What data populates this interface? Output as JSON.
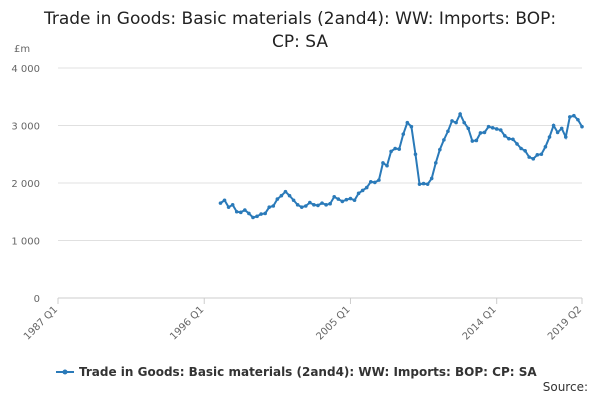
{
  "chart_data": {
    "type": "line",
    "title": "Trade in Goods: Basic materials (2and4): WW: Imports: BOP: CP: SA",
    "y_unit": "£m",
    "source": "Source:",
    "xlim": [
      "1987 Q1",
      "2019 Q2"
    ],
    "xticks": [
      "1987 Q1",
      "1996 Q1",
      "2005 Q1",
      "2014 Q1",
      "2019 Q2"
    ],
    "ylim": [
      0,
      4000
    ],
    "yticks": [
      0,
      {
        "value": 1000,
        "label": "1 000"
      },
      {
        "value": 2000,
        "label": "2 000"
      },
      {
        "value": 3000,
        "label": "3 000"
      },
      {
        "value": 4000,
        "label": "4 000"
      }
    ],
    "grid": true,
    "legend": "bottom",
    "x": [
      "1997 Q1",
      "1997 Q2",
      "1997 Q3",
      "1997 Q4",
      "1998 Q1",
      "1998 Q2",
      "1998 Q3",
      "1998 Q4",
      "1999 Q1",
      "1999 Q2",
      "1999 Q3",
      "1999 Q4",
      "2000 Q1",
      "2000 Q2",
      "2000 Q3",
      "2000 Q4",
      "2001 Q1",
      "2001 Q2",
      "2001 Q3",
      "2001 Q4",
      "2002 Q1",
      "2002 Q2",
      "2002 Q3",
      "2002 Q4",
      "2003 Q1",
      "2003 Q2",
      "2003 Q3",
      "2003 Q4",
      "2004 Q1",
      "2004 Q2",
      "2004 Q3",
      "2004 Q4",
      "2005 Q1",
      "2005 Q2",
      "2005 Q3",
      "2005 Q4",
      "2006 Q1",
      "2006 Q2",
      "2006 Q3",
      "2006 Q4",
      "2007 Q1",
      "2007 Q2",
      "2007 Q3",
      "2007 Q4",
      "2008 Q1",
      "2008 Q2",
      "2008 Q3",
      "2008 Q4",
      "2009 Q1",
      "2009 Q2",
      "2009 Q3",
      "2009 Q4",
      "2010 Q1",
      "2010 Q2",
      "2010 Q3",
      "2010 Q4",
      "2011 Q1",
      "2011 Q2",
      "2011 Q3",
      "2011 Q4",
      "2012 Q1",
      "2012 Q2",
      "2012 Q3",
      "2012 Q4",
      "2013 Q1",
      "2013 Q2",
      "2013 Q3",
      "2013 Q4",
      "2014 Q1",
      "2014 Q2",
      "2014 Q3",
      "2014 Q4",
      "2015 Q1",
      "2015 Q2",
      "2015 Q3",
      "2015 Q4",
      "2016 Q1",
      "2016 Q2",
      "2016 Q3",
      "2016 Q4",
      "2017 Q1",
      "2017 Q2",
      "2017 Q3",
      "2017 Q4",
      "2018 Q1",
      "2018 Q2",
      "2018 Q3",
      "2018 Q4",
      "2019 Q1",
      "2019 Q2"
    ],
    "series": [
      {
        "name": "Trade in Goods: Basic materials (2and4): WW: Imports: BOP: CP: SA",
        "color": "#2a7ab9",
        "values": [
          1650,
          1700,
          1580,
          1620,
          1500,
          1490,
          1530,
          1470,
          1400,
          1420,
          1460,
          1470,
          1580,
          1600,
          1720,
          1780,
          1850,
          1780,
          1700,
          1620,
          1580,
          1600,
          1660,
          1620,
          1610,
          1650,
          1620,
          1640,
          1760,
          1720,
          1680,
          1710,
          1730,
          1700,
          1820,
          1870,
          1920,
          2020,
          2010,
          2050,
          2350,
          2300,
          2550,
          2600,
          2590,
          2850,
          3050,
          2980,
          2500,
          1980,
          1990,
          1980,
          2080,
          2350,
          2580,
          2750,
          2900,
          3080,
          3050,
          3200,
          3050,
          2950,
          2730,
          2740,
          2870,
          2880,
          2980,
          2960,
          2940,
          2920,
          2820,
          2770,
          2760,
          2680,
          2600,
          2560,
          2450,
          2420,
          2490,
          2500,
          2630,
          2800,
          3000,
          2880,
          2950,
          2800,
          3150,
          3170,
          3100,
          2980
        ]
      }
    ]
  }
}
